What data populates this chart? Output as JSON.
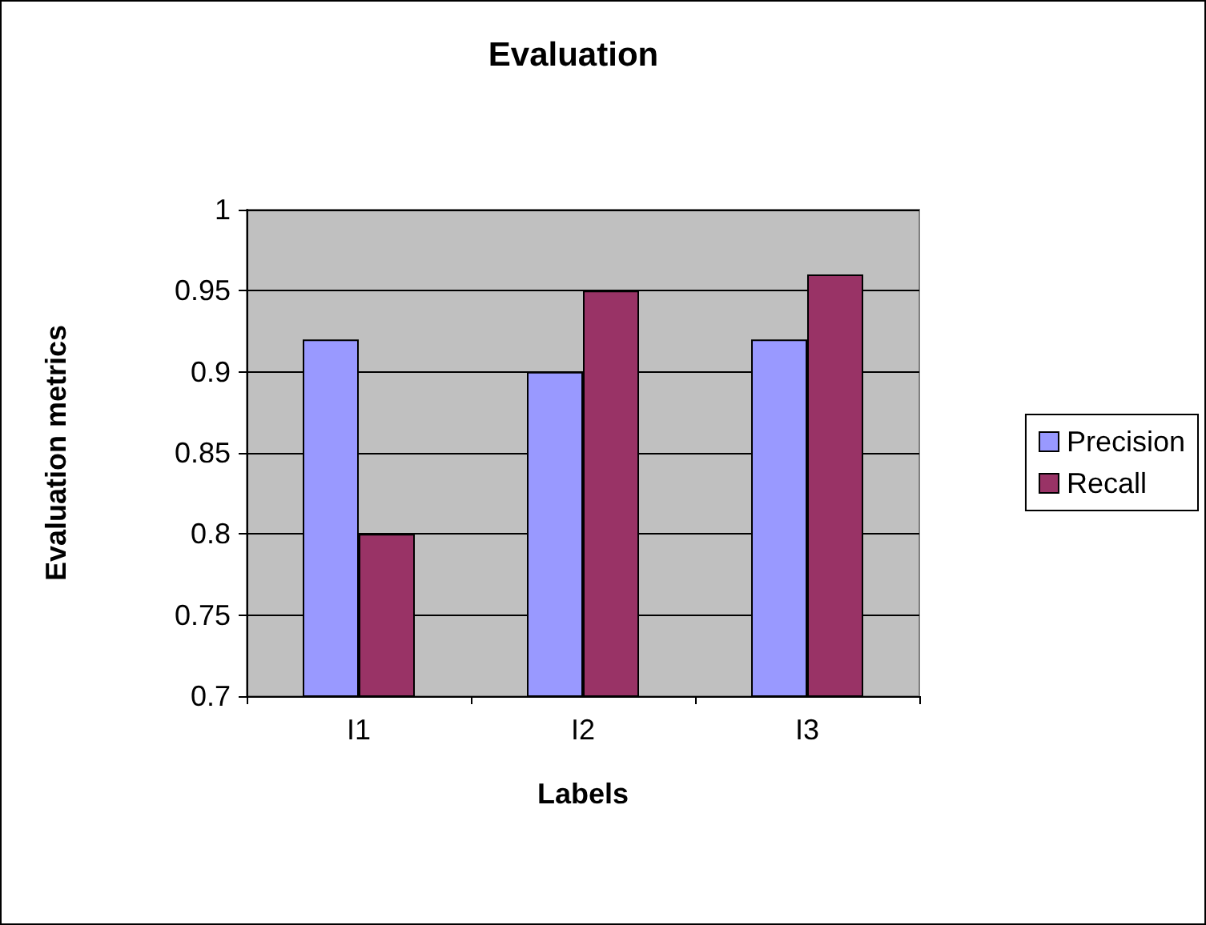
{
  "chart_data": {
    "type": "bar",
    "title": "Evaluation",
    "xlabel": "Labels",
    "ylabel": "Evaluation metrics",
    "categories": [
      "I1",
      "I2",
      "I3"
    ],
    "series": [
      {
        "name": "Precision",
        "color": "#9999ff",
        "values": [
          0.92,
          0.9,
          0.92
        ]
      },
      {
        "name": "Recall",
        "color": "#993366",
        "values": [
          0.8,
          0.95,
          0.96
        ]
      }
    ],
    "ylim": [
      0.7,
      1
    ],
    "yticks": [
      0.7,
      0.75,
      0.8,
      0.85,
      0.9,
      0.95,
      1
    ],
    "grid": "y",
    "legend": "right"
  }
}
